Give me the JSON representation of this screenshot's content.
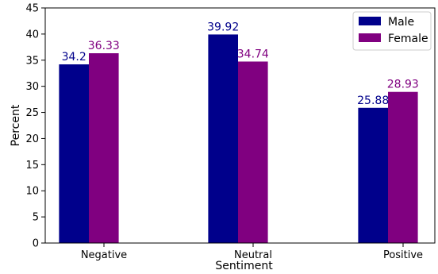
{
  "chart_data": {
    "type": "bar",
    "categories": [
      "Negative",
      "Neutral",
      "Positive"
    ],
    "series": [
      {
        "name": "Male",
        "values": [
          34.2,
          39.92,
          25.88
        ],
        "labels": [
          "34.2",
          "39.92",
          "25.88"
        ],
        "color": "#00008b"
      },
      {
        "name": "Female",
        "values": [
          36.33,
          34.74,
          28.93
        ],
        "labels": [
          "36.33",
          "34.74",
          "28.93"
        ],
        "color": "#800080"
      }
    ],
    "xlabel": "Sentiment",
    "ylabel": "Percent",
    "ylim": [
      0,
      45
    ],
    "yticks": [
      0,
      5,
      10,
      15,
      20,
      25,
      30,
      35,
      40,
      45
    ],
    "grid": false,
    "legend_position": "top-right",
    "title": ""
  }
}
